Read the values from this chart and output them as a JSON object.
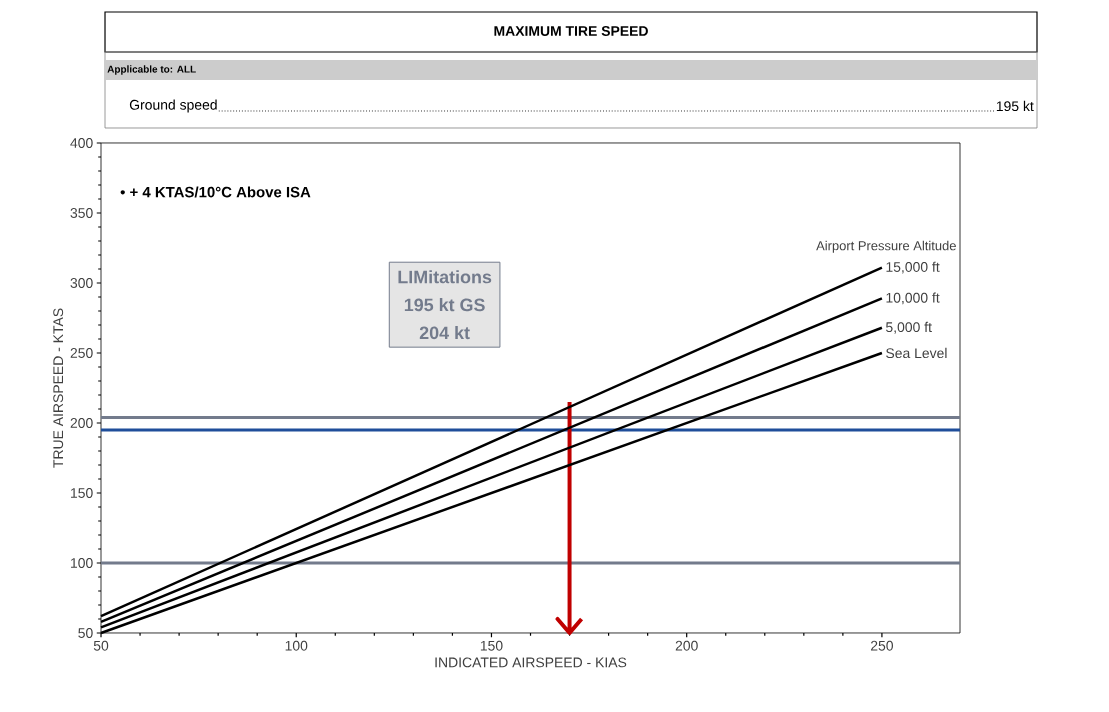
{
  "chart_data": {
    "type": "line",
    "title": "MAXIMUM TIRE SPEED",
    "subtitle": "Applicable to: ALL",
    "xlabel": "INDICATED AIRSPEED - KIAS",
    "ylabel": "TRUE AIRSPEED - KTAS",
    "annotations": [
      "Ground speed",
      "195 kt",
      "• + 4 KTAS/10°C Above ISA",
      "LIMitations",
      "195 kt GS",
      "204 kt",
      "Airport Pressure Altitude"
    ],
    "xlim": [
      50,
      270
    ],
    "ylim": [
      50,
      400
    ],
    "xticks": [
      50,
      100,
      150,
      200,
      250
    ],
    "yticks": [
      50,
      100,
      150,
      200,
      250,
      300,
      350,
      400
    ],
    "x": [
      50,
      250
    ],
    "series": [
      {
        "name": "15,000 ft",
        "color": "#000000",
        "values": [
          62,
          311
        ]
      },
      {
        "name": "10,000 ft",
        "color": "#000000",
        "values": [
          58,
          289
        ]
      },
      {
        "name": "5,000 ft",
        "color": "#000000",
        "values": [
          54,
          268
        ]
      },
      {
        "name": "Sea Level",
        "color": "#000000",
        "values": [
          50,
          250
        ]
      }
    ],
    "ref_lines": [
      {
        "axis": "y",
        "value": 204,
        "color": "#737b8c"
      },
      {
        "axis": "y",
        "value": 195,
        "color": "#1f4e9a"
      },
      {
        "axis": "y",
        "value": 100,
        "color": "#737b8c"
      },
      {
        "axis": "x",
        "value": 170,
        "color": "#c00000"
      }
    ]
  }
}
